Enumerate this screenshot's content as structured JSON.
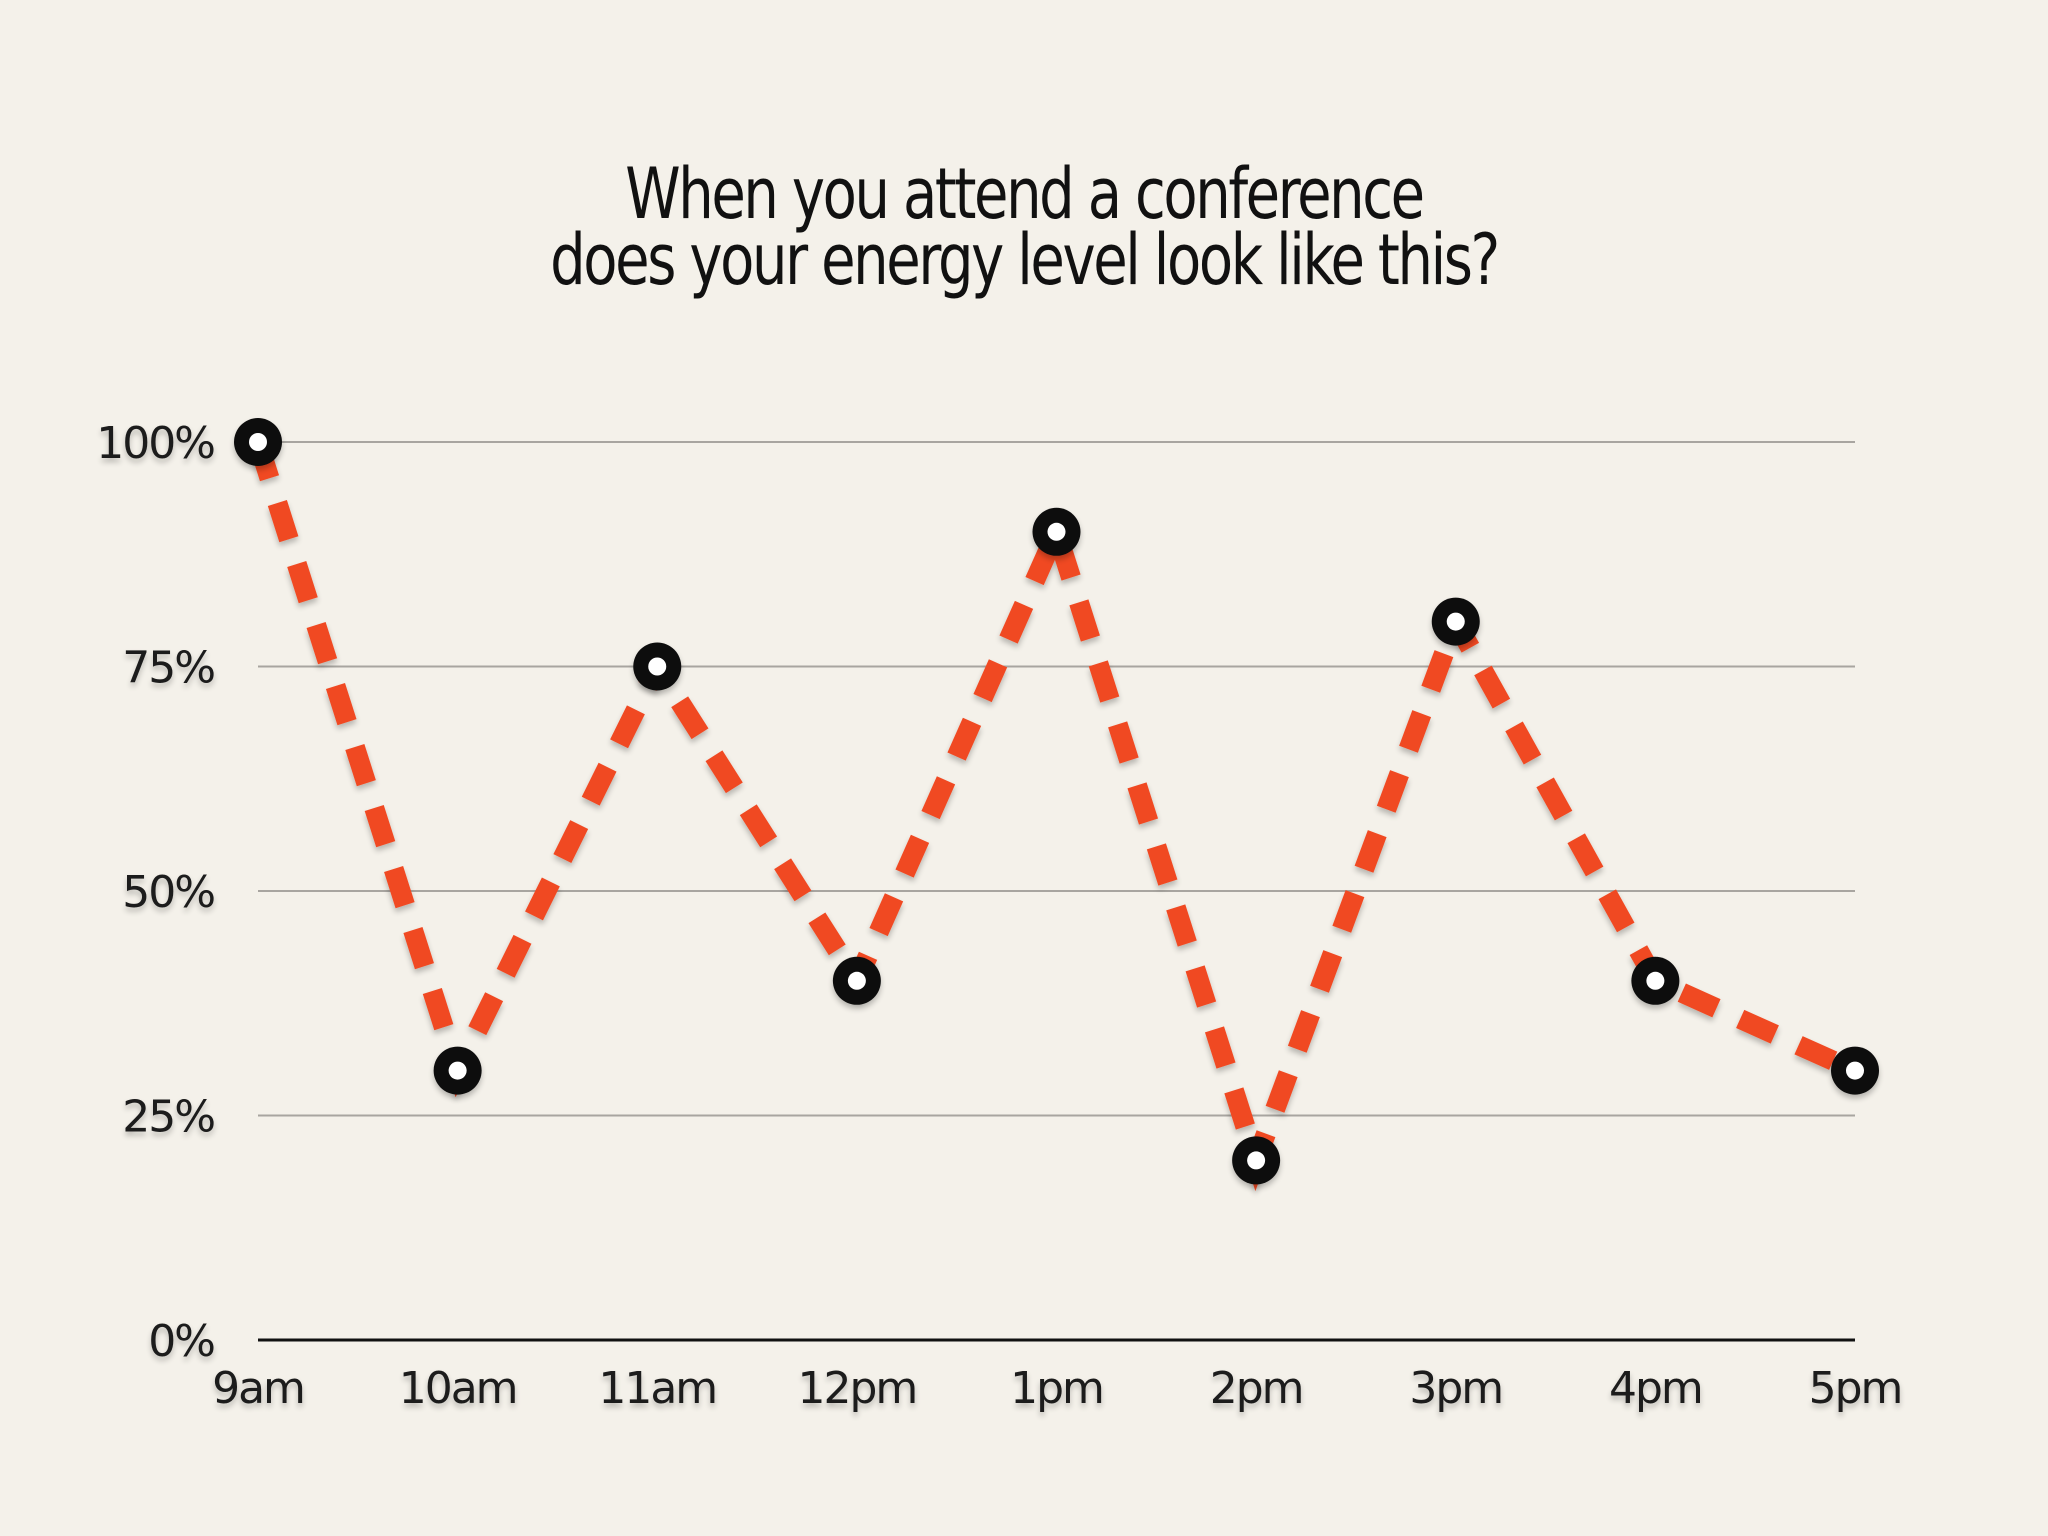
{
  "chart_data": {
    "type": "line",
    "title_lines": [
      "When you attend a conference",
      "does your energy level look like this?"
    ],
    "categories": [
      "9am",
      "10am",
      "11am",
      "12pm",
      "1pm",
      "2pm",
      "3pm",
      "4pm",
      "5pm"
    ],
    "series": [
      {
        "values": [
          100,
          30,
          75,
          40,
          90,
          20,
          80,
          40,
          30
        ]
      }
    ],
    "y_ticks": [
      0,
      25,
      50,
      75,
      100
    ],
    "y_tick_labels": [
      "0%",
      "25%",
      "50%",
      "75%",
      "100%"
    ],
    "ylim": [
      0,
      100
    ],
    "xlabel": "",
    "ylabel": "",
    "grid": true,
    "line_style": "dashed",
    "colors": {
      "background": "#f4f1ea",
      "line": "#f04a24",
      "marker": "#111111",
      "marker_center": "#ffffff",
      "gridline": "#a8a5a0",
      "baseline": "#111111",
      "text": "#111111"
    }
  }
}
